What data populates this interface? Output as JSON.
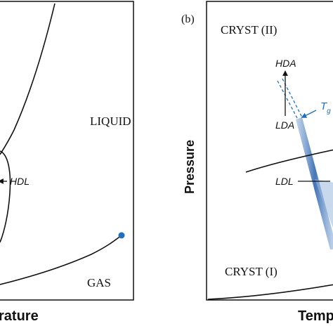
{
  "left_panel": {
    "region_liquid": "LIQUID",
    "region_gas": "GAS",
    "label_hdl": "HDL",
    "xlabel_fragment": "rature"
  },
  "right_panel": {
    "panel_label": "(b)",
    "region_cryst_ii": "CRYST (II)",
    "region_cryst_i": "CRYST (I)",
    "label_hda": "HDA",
    "label_lda": "LDA",
    "label_ldl": "LDL",
    "label_tg": "T",
    "label_tg_sub": "g",
    "ylabel": "Pressure",
    "xlabel_fragment": "Temp"
  },
  "colors": {
    "line": "#111111",
    "accent_blue": "#1f6fbf",
    "band_blue": "#3b6fb4",
    "band_light": "#9bb9de"
  }
}
